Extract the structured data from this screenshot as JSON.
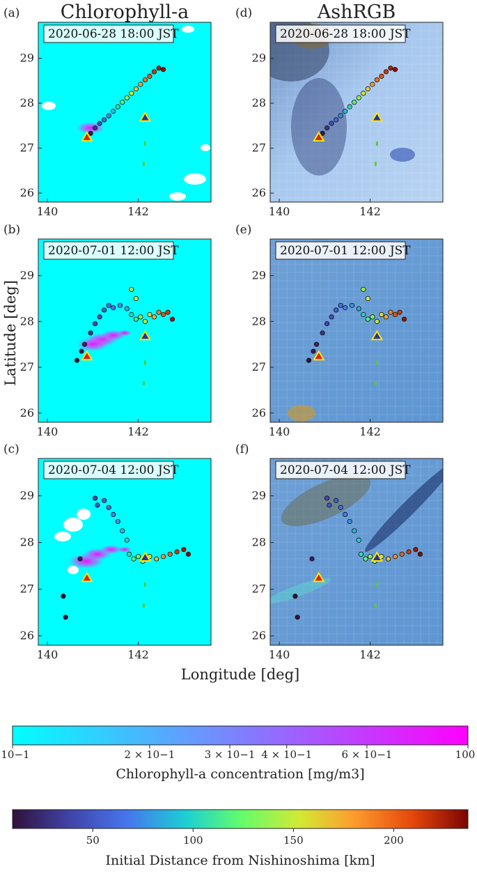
{
  "column_titles": [
    "Chlorophyll-a",
    "AshRGB"
  ],
  "xlabel": "Longitude [deg]",
  "ylabel": "Latitude [deg]",
  "panels": [
    {
      "label": "(a)",
      "date": "2020-06-28 18:00 JST",
      "col": 0,
      "row": 0
    },
    {
      "label": "(b)",
      "date": "2020-07-01 12:00 JST",
      "col": 0,
      "row": 1
    },
    {
      "label": "(c)",
      "date": "2020-07-04 12:00 JST",
      "col": 0,
      "row": 2
    },
    {
      "label": "(d)",
      "date": "2020-06-28 18:00 JST",
      "col": 1,
      "row": 0
    },
    {
      "label": "(e)",
      "date": "2020-07-01 12:00 JST",
      "col": 1,
      "row": 1
    },
    {
      "label": "(f)",
      "date": "2020-07-04 12:00 JST",
      "col": 1,
      "row": 2
    }
  ],
  "colorbar_chl": {
    "title": "Chlorophyll-a concentration [mg/m3]",
    "scale": "log",
    "range": [
      0.1,
      1.0
    ],
    "colors": [
      "#00ffff",
      "#ff00ff"
    ],
    "ticks": [
      {
        "value": 0.1,
        "label": "10−1"
      },
      {
        "value": 0.2,
        "label": "2 × 10−1"
      },
      {
        "value": 0.3,
        "label": "3 × 10−1"
      },
      {
        "value": 0.4,
        "label": "4 × 10−1"
      },
      {
        "value": 0.6,
        "label": "6 × 10−1"
      },
      {
        "value": 1.0,
        "label": "100"
      }
    ]
  },
  "colorbar_dist": {
    "title": "Initial Distance from Nishinoshima [km]",
    "range": [
      10,
      237
    ],
    "colormap": "turbo",
    "ticks": [
      {
        "value": 50,
        "label": "50"
      },
      {
        "value": 100,
        "label": "100"
      },
      {
        "value": 150,
        "label": "150"
      },
      {
        "value": 200,
        "label": "200"
      }
    ]
  },
  "chart_data": {
    "type": "scatter",
    "xlim": [
      139.8,
      143.6
    ],
    "ylim": [
      25.8,
      29.8
    ],
    "xticks": [
      140,
      142
    ],
    "yticks": [
      26,
      27,
      28,
      29
    ],
    "markers": {
      "nishinoshima": {
        "lon": 140.87,
        "lat": 27.24,
        "color": "#dd2222",
        "edge": "#ffe600"
      },
      "chichijima": {
        "lon": 142.15,
        "lat": 27.68,
        "color": "#2233aa",
        "edge": "#ffe600"
      }
    },
    "snapshots": [
      {
        "date": "2020-06-28 18:00 JST",
        "parcels": [
          [
            140.95,
            27.33,
            15
          ],
          [
            141.05,
            27.45,
            30
          ],
          [
            141.15,
            27.55,
            45
          ],
          [
            141.25,
            27.63,
            60
          ],
          [
            141.35,
            27.72,
            75
          ],
          [
            141.45,
            27.82,
            90
          ],
          [
            141.55,
            27.92,
            105
          ],
          [
            141.65,
            28.02,
            120
          ],
          [
            141.75,
            28.12,
            135
          ],
          [
            141.85,
            28.22,
            150
          ],
          [
            141.95,
            28.32,
            165
          ],
          [
            142.05,
            28.42,
            180
          ],
          [
            142.15,
            28.52,
            195
          ],
          [
            142.25,
            28.6,
            205
          ],
          [
            142.35,
            28.7,
            215
          ],
          [
            142.45,
            28.78,
            225
          ],
          [
            142.55,
            28.75,
            232
          ]
        ],
        "plume": [
          [
            140.95,
            27.45,
            0.8
          ]
        ]
      },
      {
        "date": "2020-07-01 12:00 JST",
        "parcels": [
          [
            140.65,
            27.15,
            10
          ],
          [
            140.75,
            27.35,
            15
          ],
          [
            140.82,
            27.5,
            20
          ],
          [
            140.95,
            27.75,
            30
          ],
          [
            141.05,
            27.95,
            40
          ],
          [
            141.15,
            28.1,
            45
          ],
          [
            141.25,
            28.25,
            55
          ],
          [
            141.35,
            28.35,
            62
          ],
          [
            141.45,
            28.3,
            68
          ],
          [
            141.6,
            28.35,
            75
          ],
          [
            141.75,
            28.28,
            85
          ],
          [
            141.85,
            28.15,
            100
          ],
          [
            141.95,
            28.05,
            115
          ],
          [
            142.05,
            28.1,
            130
          ],
          [
            142.15,
            28.0,
            145
          ],
          [
            142.25,
            28.15,
            160
          ],
          [
            142.35,
            28.1,
            175
          ],
          [
            142.45,
            28.2,
            190
          ],
          [
            142.55,
            28.15,
            205
          ],
          [
            142.65,
            28.2,
            215
          ],
          [
            142.75,
            28.05,
            230
          ],
          [
            141.85,
            28.7,
            140
          ],
          [
            141.95,
            28.5,
            150
          ]
        ],
        "plume": [
          [
            141.2,
            27.6,
            0.9
          ],
          [
            141.0,
            27.5,
            0.9
          ],
          [
            141.45,
            27.7,
            0.7
          ],
          [
            141.7,
            27.75,
            0.4
          ]
        ]
      },
      {
        "date": "2020-07-04 12:00 JST",
        "parcels": [
          [
            140.35,
            26.85,
            10
          ],
          [
            140.4,
            26.4,
            12
          ],
          [
            140.72,
            27.65,
            18
          ],
          [
            141.05,
            28.95,
            40
          ],
          [
            141.1,
            28.8,
            48
          ],
          [
            141.25,
            28.9,
            55
          ],
          [
            141.35,
            28.75,
            62
          ],
          [
            141.45,
            28.6,
            70
          ],
          [
            141.55,
            28.45,
            78
          ],
          [
            141.65,
            28.25,
            88
          ],
          [
            141.75,
            28.05,
            98
          ],
          [
            141.8,
            27.75,
            105
          ],
          [
            141.9,
            27.65,
            118
          ],
          [
            142.0,
            27.7,
            130
          ],
          [
            142.1,
            27.6,
            140
          ],
          [
            142.25,
            27.7,
            155
          ],
          [
            142.4,
            27.65,
            170
          ],
          [
            142.55,
            27.7,
            185
          ],
          [
            142.7,
            27.75,
            200
          ],
          [
            142.85,
            27.8,
            215
          ],
          [
            143.0,
            27.85,
            228
          ],
          [
            143.1,
            27.75,
            235
          ]
        ],
        "plume": [
          [
            140.85,
            27.6,
            1.0
          ],
          [
            141.1,
            27.75,
            0.8
          ],
          [
            141.4,
            27.85,
            0.6
          ],
          [
            141.7,
            27.85,
            0.4
          ]
        ]
      }
    ]
  }
}
